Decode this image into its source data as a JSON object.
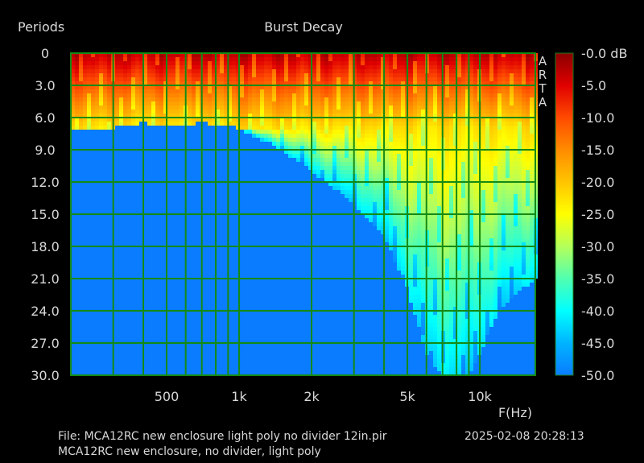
{
  "chart_data": {
    "type": "heatmap",
    "title": "Burst Decay",
    "ylabel": "Periods",
    "xlabel": "F(Hz)",
    "x_scale": "log",
    "xlim": [
      200,
      17000
    ],
    "ylim": [
      0,
      30
    ],
    "x_tick_labels": [
      {
        "value": 500,
        "label": "500"
      },
      {
        "value": 1000,
        "label": "1k"
      },
      {
        "value": 2000,
        "label": "2k"
      },
      {
        "value": 5000,
        "label": "5k"
      },
      {
        "value": 10000,
        "label": "10k"
      }
    ],
    "y_ticks": [
      {
        "value": 0,
        "label": "0"
      },
      {
        "value": 3,
        "label": "3.0"
      },
      {
        "value": 6,
        "label": "6.0"
      },
      {
        "value": 9,
        "label": "9.0"
      },
      {
        "value": 12,
        "label": "12.0"
      },
      {
        "value": 15,
        "label": "15.0"
      },
      {
        "value": 18,
        "label": "18.0"
      },
      {
        "value": 21,
        "label": "21.0"
      },
      {
        "value": 24,
        "label": "24.0"
      },
      {
        "value": 27,
        "label": "27.0"
      },
      {
        "value": 30,
        "label": "30.0"
      }
    ],
    "colorbar": {
      "min": -50,
      "max": 0,
      "tick_labels": [
        "-0.0 dB",
        "-5.0",
        "-10.0",
        "-15.0",
        "-20.0",
        "-25.0",
        "-30.0",
        "-35.0",
        "-40.0",
        "-45.0",
        "-50.0"
      ]
    },
    "decay_envelope": {
      "frequencies": [
        200,
        300,
        400,
        500,
        700,
        1000,
        1500,
        2000,
        3000,
        4000,
        5000,
        6000,
        7000,
        8000,
        9000,
        10000,
        12000,
        15000,
        17000
      ],
      "periods_to_floor": [
        7,
        7,
        6.5,
        6.8,
        6.5,
        7,
        9,
        11,
        14,
        17,
        22,
        28,
        30,
        30,
        30,
        28,
        24,
        22,
        21
      ]
    },
    "grid": true,
    "side_label": [
      "A",
      "R",
      "T",
      "A"
    ]
  },
  "footer": {
    "file_line": "File: MCA12RC new enclosure light poly no divider 12in.pir",
    "timestamp": "2025-02-08  20:28:13",
    "description": "MCA12RC new enclosure, no divider, light poly"
  }
}
